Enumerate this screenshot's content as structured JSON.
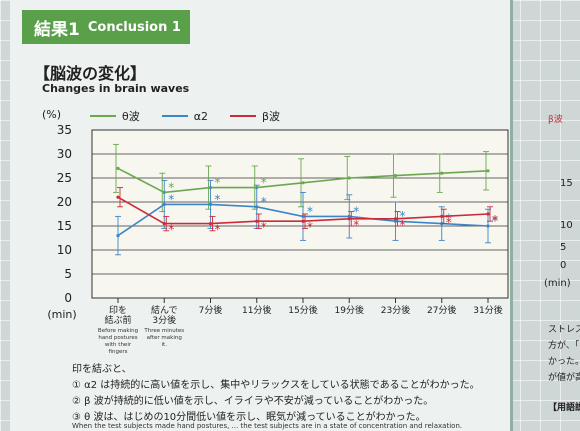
{
  "header": {
    "jp": "結果1",
    "en": "Conclusion 1"
  },
  "section": {
    "title": "【脳波の変化】",
    "subtitle_en": "Changes in brain waves"
  },
  "chart_data": {
    "type": "line",
    "ylabel": "(%)",
    "xlabel": "(min)",
    "ylim": [
      0,
      35
    ],
    "yticks": [
      0,
      5,
      10,
      15,
      20,
      25,
      30,
      35
    ],
    "categories": [
      "印を結ぶ前",
      "結んで3分後",
      "7分後",
      "11分後",
      "15分後",
      "19分後",
      "23分後",
      "27分後",
      "31分後"
    ],
    "category_sub": [
      "Before making hand postures with their fingers",
      "Three minutes after making it.",
      "",
      "",
      "",
      "",
      "",
      "",
      ""
    ],
    "series": [
      {
        "name": "θ波",
        "color": "#6aa84f",
        "values": [
          27,
          22,
          23,
          23,
          24,
          25,
          25.5,
          26,
          26.5
        ],
        "err": [
          5,
          4,
          4.5,
          4.5,
          5,
          4.5,
          4.5,
          4,
          4
        ],
        "sig": [
          false,
          true,
          true,
          true,
          false,
          false,
          false,
          false,
          false
        ]
      },
      {
        "name": "α2",
        "color": "#3d85c6",
        "values": [
          13,
          19.5,
          19.5,
          19,
          17,
          17,
          16,
          15.5,
          15
        ],
        "err": [
          4,
          5,
          5,
          4.5,
          5,
          4.5,
          4,
          3.5,
          3.5
        ],
        "sig": [
          false,
          true,
          true,
          true,
          true,
          true,
          true,
          true,
          true
        ]
      },
      {
        "name": "β波",
        "color": "#cc2a3b",
        "values": [
          21,
          15.5,
          15.5,
          16,
          16,
          16.5,
          16.5,
          17,
          17.5
        ],
        "err": [
          2,
          1.5,
          1.5,
          1.5,
          1.5,
          1.5,
          1.5,
          1.5,
          1.5
        ],
        "sig": [
          false,
          true,
          true,
          true,
          true,
          true,
          true,
          true,
          true
        ]
      }
    ],
    "grid": true
  },
  "notes": {
    "intro": "印を結ぶと、",
    "items": [
      "① α2 は持続的に高い値を示し、集中やリラックスをしている状態であることがわかった。",
      "② β 波が持続的に低い値を示し、イライラや不安が減っていることがわかった。",
      "③ θ 波は、はじめの10分間低い値を示し、眠気が減っていることがわかった。"
    ],
    "footer": "When the test subjects made hand postures, ... the test subjects are in a state of concentration and relaxation."
  },
  "right_panel": {
    "ticks": [
      "15",
      "10",
      "5",
      "0"
    ],
    "unit": "(min)",
    "texts": [
      "ストレス",
      "方が、「印",
      "かった。印",
      "が値が高",
      "【用語説"
    ],
    "legend_fragment": "β波"
  }
}
